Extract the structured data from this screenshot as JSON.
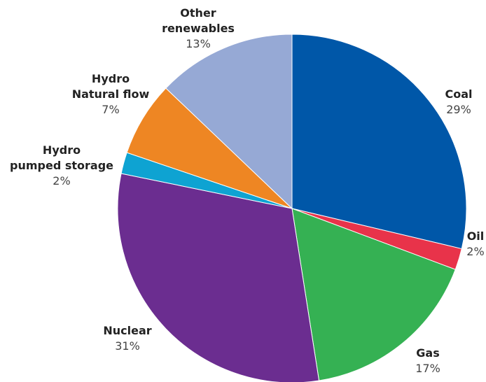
{
  "chart_data": {
    "type": "pie",
    "title": "",
    "slices": [
      {
        "name_lines": [
          "Coal"
        ],
        "value_label": "29%",
        "value": 29,
        "color": "#0057a8"
      },
      {
        "name_lines": [
          "Oil"
        ],
        "value_label": "2%",
        "value": 2,
        "color": "#e8334a"
      },
      {
        "name_lines": [
          "Gas"
        ],
        "value_label": "17%",
        "value": 17,
        "color": "#35b153"
      },
      {
        "name_lines": [
          "Nuclear"
        ],
        "value_label": "31%",
        "value": 31,
        "color": "#6b2d90"
      },
      {
        "name_lines": [
          "Hydro",
          "pumped storage"
        ],
        "value_label": "2%",
        "value": 2,
        "color": "#0ea3d2"
      },
      {
        "name_lines": [
          "Hydro",
          "Natural flow"
        ],
        "value_label": "7%",
        "value": 7,
        "color": "#ee8623"
      },
      {
        "name_lines": [
          "Other",
          "renewables"
        ],
        "value_label": "13%",
        "value": 13,
        "color": "#96a9d5"
      }
    ]
  }
}
